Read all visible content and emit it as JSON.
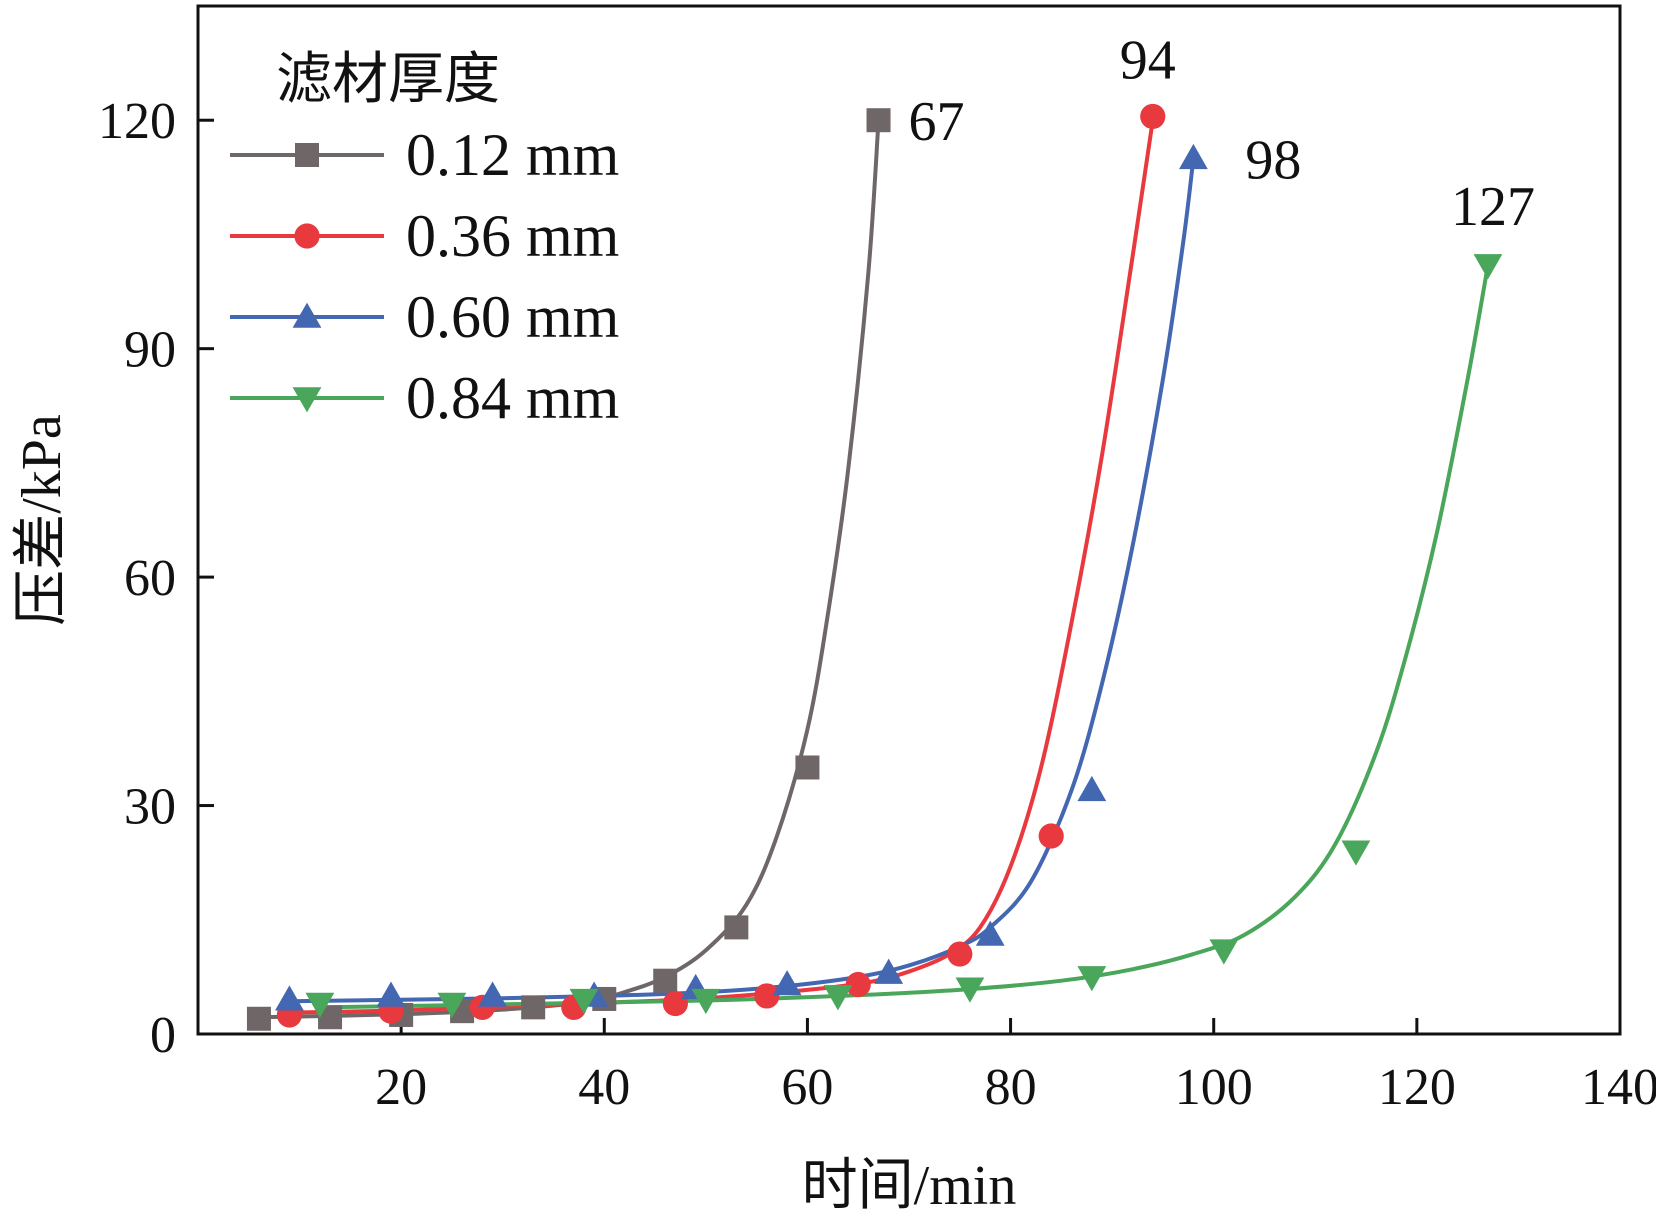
{
  "chart_data": {
    "type": "scatter",
    "xlabel": "时间/min",
    "ylabel": "压差/kPa",
    "xlim": [
      0,
      140
    ],
    "ylim": [
      0,
      135
    ],
    "xticks": [
      20,
      40,
      60,
      80,
      100,
      120,
      140
    ],
    "yticks": [
      0,
      30,
      60,
      90,
      120
    ],
    "grid": false,
    "legend": {
      "title": "滤材厚度",
      "position": "top-left"
    },
    "series": [
      {
        "name": "0.12 mm",
        "color": "#6f6767",
        "marker": "square",
        "points": [
          [
            6,
            2
          ],
          [
            13,
            2.2
          ],
          [
            20,
            2.5
          ],
          [
            26,
            3
          ],
          [
            33,
            3.5
          ],
          [
            40,
            4.6
          ],
          [
            46,
            7
          ],
          [
            53,
            14
          ],
          [
            60,
            35
          ],
          [
            67,
            120
          ]
        ],
        "fit": [
          [
            6,
            2.2
          ],
          [
            20,
            2.6
          ],
          [
            30,
            3.2
          ],
          [
            38,
            4.2
          ],
          [
            42,
            5.5
          ],
          [
            46,
            7.5
          ],
          [
            50,
            11
          ],
          [
            54,
            17
          ],
          [
            57,
            26
          ],
          [
            60,
            40
          ],
          [
            62,
            55
          ],
          [
            64,
            74
          ],
          [
            66,
            100
          ],
          [
            67,
            120
          ]
        ],
        "end_label": "67"
      },
      {
        "name": "0.36 mm",
        "color": "#e8393f",
        "marker": "circle",
        "points": [
          [
            9,
            2.5
          ],
          [
            19,
            3
          ],
          [
            28,
            3.5
          ],
          [
            37,
            3.5
          ],
          [
            47,
            4
          ],
          [
            56,
            5
          ],
          [
            65,
            6.5
          ],
          [
            75,
            10.5
          ],
          [
            84,
            26
          ],
          [
            94,
            120.5
          ]
        ],
        "fit": [
          [
            9,
            2.8
          ],
          [
            20,
            3.1
          ],
          [
            30,
            3.6
          ],
          [
            40,
            4.1
          ],
          [
            50,
            4.7
          ],
          [
            60,
            5.8
          ],
          [
            66,
            6.8
          ],
          [
            70,
            8.2
          ],
          [
            74,
            10.5
          ],
          [
            77,
            14
          ],
          [
            80,
            22
          ],
          [
            83,
            35
          ],
          [
            86,
            54
          ],
          [
            89,
            76
          ],
          [
            92,
            102
          ],
          [
            94,
            120
          ]
        ],
        "end_label": "94"
      },
      {
        "name": "0.60 mm",
        "color": "#4367b1",
        "marker": "triangle-up",
        "points": [
          [
            9,
            4.5
          ],
          [
            19,
            5
          ],
          [
            29,
            5
          ],
          [
            39,
            5
          ],
          [
            49,
            6
          ],
          [
            58,
            6.5
          ],
          [
            68,
            8
          ],
          [
            78,
            13
          ],
          [
            88,
            32
          ],
          [
            98,
            115
          ]
        ],
        "fit": [
          [
            9,
            4.3
          ],
          [
            20,
            4.5
          ],
          [
            30,
            4.7
          ],
          [
            40,
            5
          ],
          [
            50,
            5.5
          ],
          [
            58,
            6.3
          ],
          [
            65,
            7.5
          ],
          [
            70,
            9
          ],
          [
            75,
            11.5
          ],
          [
            78,
            14
          ],
          [
            82,
            20
          ],
          [
            86,
            32
          ],
          [
            89,
            46
          ],
          [
            92,
            64
          ],
          [
            95,
            86
          ],
          [
            97,
            104
          ],
          [
            98,
            115
          ]
        ],
        "end_label": "98"
      },
      {
        "name": "0.84 mm",
        "color": "#4aa65a",
        "marker": "triangle-down",
        "points": [
          [
            12,
            4
          ],
          [
            25,
            4
          ],
          [
            38,
            4.5
          ],
          [
            50,
            4.5
          ],
          [
            63,
            5
          ],
          [
            76,
            6
          ],
          [
            88,
            7.5
          ],
          [
            101,
            11
          ],
          [
            114,
            24
          ],
          [
            127,
            101
          ]
        ],
        "fit": [
          [
            12,
            3.5
          ],
          [
            30,
            3.9
          ],
          [
            50,
            4.4
          ],
          [
            65,
            5.1
          ],
          [
            76,
            5.9
          ],
          [
            85,
            7
          ],
          [
            92,
            8.5
          ],
          [
            98,
            10.5
          ],
          [
            103,
            13
          ],
          [
            108,
            18
          ],
          [
            112,
            25
          ],
          [
            116,
            37
          ],
          [
            119,
            50
          ],
          [
            122,
            66
          ],
          [
            125,
            86
          ],
          [
            127,
            101
          ]
        ],
        "end_label": "127"
      }
    ]
  }
}
